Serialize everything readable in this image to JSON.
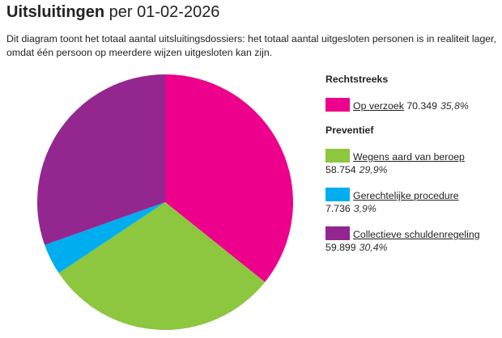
{
  "header": {
    "title_bold": "Uitsluitingen",
    "title_rest": " per 01-02-2026"
  },
  "description": "Dit diagram toont het totaal aantal uitsluitingsdossiers: het totaal aantal uitgesloten personen is in realiteit lager, omdat één persoon op meerdere wijzen uitgesloten kan zijn.",
  "chart_data": {
    "type": "pie",
    "start": "top, clockwise",
    "groups": [
      {
        "name": "Rechtstreeks",
        "items": [
          {
            "label": "Op verzoek",
            "value": 70349,
            "value_text": "70.349",
            "pct_text": "35,8%",
            "color": "#ec008c"
          }
        ]
      },
      {
        "name": "Preventief",
        "items": [
          {
            "label": "Wegens aard van beroep",
            "value": 58754,
            "value_text": "58.754",
            "pct_text": "29,9%",
            "color": "#8dc63f"
          },
          {
            "label": "Gerechtelijke procedure",
            "value": 7736,
            "value_text": "7.736",
            "pct_text": "3,9%",
            "color": "#00aeef"
          },
          {
            "label": "Collectieve schuldenregeling",
            "value": 59899,
            "value_text": "59.899",
            "pct_text": "30,4%",
            "color": "#93278f"
          }
        ]
      }
    ]
  }
}
